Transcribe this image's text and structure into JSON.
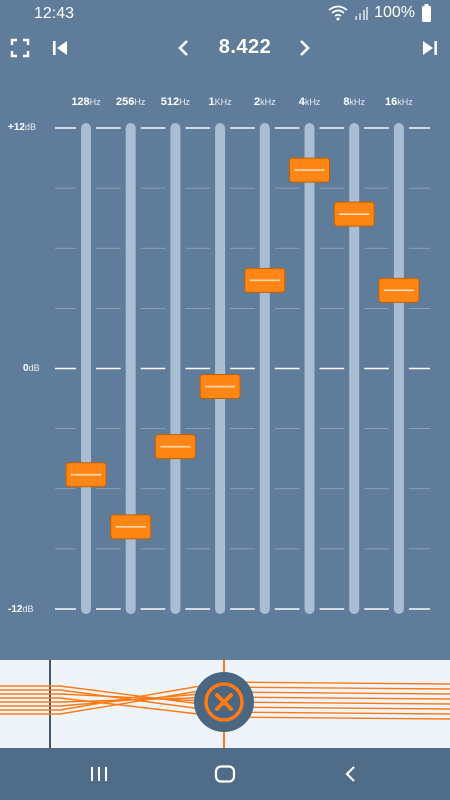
{
  "status": {
    "time": "12:43",
    "battery": "100%",
    "icons": [
      "wifi-icon",
      "signal-icon",
      "battery-icon"
    ]
  },
  "toolbar": {
    "preset_value": "8.422",
    "icons": [
      "fullscreen-icon",
      "skip-previous-icon",
      "chevron-left-icon",
      "chevron-right-icon",
      "skip-next-icon"
    ]
  },
  "bands": [
    {
      "value": "128",
      "unit": "Hz",
      "gain_db": -5.3
    },
    {
      "value": "256",
      "unit": "Hz",
      "gain_db": -7.9
    },
    {
      "value": "512",
      "unit": "Hz",
      "gain_db": -3.9
    },
    {
      "value": "1",
      "unit": "KHz",
      "gain_db": -0.9
    },
    {
      "value": "2",
      "unit": "kHz",
      "gain_db": 4.4
    },
    {
      "value": "4",
      "unit": "kHz",
      "gain_db": 9.9
    },
    {
      "value": "8",
      "unit": "kHz",
      "gain_db": 7.7
    },
    {
      "value": "16",
      "unit": "kHz",
      "gain_db": 3.9
    }
  ],
  "scale": {
    "top": {
      "value": "+12",
      "unit": "dB"
    },
    "mid": {
      "value": "0",
      "unit": "dB"
    },
    "bottom": {
      "value": "-12",
      "unit": "dB"
    },
    "range_db": [
      -12,
      12
    ]
  },
  "colors": {
    "background": "#5f7d9a",
    "slider_track": "#a9bdd3",
    "knob": "#ff8515",
    "curve": "#ff7a14",
    "panel": "#eef4fa",
    "nav": "#4f6c88"
  },
  "nav": {
    "icons": [
      "recent-apps-icon",
      "home-icon",
      "back-icon"
    ]
  }
}
